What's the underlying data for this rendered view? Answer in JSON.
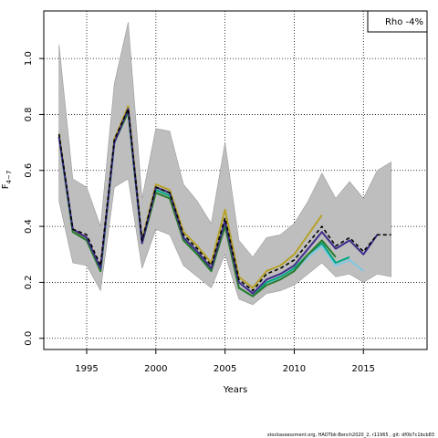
{
  "chart_data": {
    "type": "line",
    "title": "",
    "xlabel": "Years",
    "ylabel": "F",
    "ylabel_subscript": "4−7",
    "xlim": [
      1991.9,
      2019.6
    ],
    "ylim": [
      -0.04,
      1.17
    ],
    "x_ticks": [
      1995,
      2000,
      2005,
      2010,
      2015
    ],
    "x_tick_labels": [
      "1995",
      "2000",
      "2005",
      "2010",
      "2015"
    ],
    "y_ticks": [
      0.0,
      0.2,
      0.4,
      0.6,
      0.8,
      1.0
    ],
    "y_tick_labels": [
      "0.0",
      "0.2",
      "0.4",
      "0.6",
      "0.8",
      "1.0"
    ],
    "grid": true,
    "legend_placement": "top-right",
    "legend_text": "Rho -4%",
    "footer": "stockassessment.org, HADTbk-Bench2020_2, r11965 , git: df0b7c1bcb83",
    "band": {
      "color": "#bebebe",
      "x": [
        1993,
        1994,
        1995,
        1996,
        1997,
        1998,
        1999,
        2000,
        2001,
        2002,
        2003,
        2004,
        2005,
        2006,
        2007,
        2008,
        2009,
        2010,
        2011,
        2012,
        2013,
        2014,
        2015,
        2016,
        2017
      ],
      "upper": [
        1.05,
        0.57,
        0.54,
        0.4,
        0.91,
        1.13,
        0.5,
        0.75,
        0.74,
        0.55,
        0.49,
        0.41,
        0.7,
        0.35,
        0.29,
        0.36,
        0.37,
        0.41,
        0.49,
        0.59,
        0.5,
        0.56,
        0.5,
        0.6,
        0.63
      ],
      "lower": [
        0.49,
        0.27,
        0.26,
        0.17,
        0.54,
        0.57,
        0.25,
        0.39,
        0.37,
        0.26,
        0.22,
        0.18,
        0.3,
        0.14,
        0.12,
        0.16,
        0.17,
        0.19,
        0.23,
        0.27,
        0.22,
        0.23,
        0.2,
        0.23,
        0.22
      ]
    },
    "series": [
      {
        "color": "#b5a227",
        "dashed": false,
        "x": [
          1993,
          1994,
          1995,
          1996,
          1997,
          1998,
          1999,
          2000,
          2001,
          2002,
          2003,
          2004,
          2005,
          2006,
          2007,
          2008,
          2009,
          2010,
          2011,
          2012
        ],
        "values": [
          0.73,
          0.38,
          0.36,
          0.25,
          0.71,
          0.83,
          0.35,
          0.55,
          0.53,
          0.38,
          0.33,
          0.27,
          0.46,
          0.22,
          0.18,
          0.24,
          0.26,
          0.3,
          0.37,
          0.44
        ]
      },
      {
        "color": "#7ec8e3",
        "dashed": false,
        "x": [
          1993,
          1994,
          1995,
          1996,
          1997,
          1998,
          1999,
          2000,
          2001,
          2002,
          2003,
          2004,
          2005,
          2006,
          2007,
          2008,
          2009,
          2010,
          2011,
          2012,
          2013,
          2014,
          2015
        ],
        "values": [
          0.72,
          0.38,
          0.35,
          0.24,
          0.7,
          0.81,
          0.34,
          0.53,
          0.51,
          0.36,
          0.3,
          0.25,
          0.41,
          0.18,
          0.15,
          0.2,
          0.21,
          0.24,
          0.29,
          0.33,
          0.26,
          0.28,
          0.24
        ]
      },
      {
        "color": "#00a67e",
        "dashed": false,
        "x": [
          1993,
          1994,
          1995,
          1996,
          1997,
          1998,
          1999,
          2000,
          2001,
          2002,
          2003,
          2004,
          2005,
          2006,
          2007,
          2008,
          2009,
          2010,
          2011,
          2012,
          2013,
          2014
        ],
        "values": [
          0.72,
          0.38,
          0.35,
          0.24,
          0.7,
          0.81,
          0.34,
          0.53,
          0.51,
          0.35,
          0.3,
          0.24,
          0.41,
          0.18,
          0.15,
          0.2,
          0.22,
          0.25,
          0.3,
          0.34,
          0.27,
          0.29
        ]
      },
      {
        "color": "#2a7a2a",
        "dashed": false,
        "x": [
          1993,
          1994,
          1995,
          1996,
          1997,
          1998,
          1999,
          2000,
          2001,
          2002,
          2003,
          2004,
          2005,
          2006,
          2007,
          2008,
          2009,
          2010,
          2011,
          2012,
          2013
        ],
        "values": [
          0.72,
          0.38,
          0.35,
          0.24,
          0.7,
          0.81,
          0.34,
          0.52,
          0.5,
          0.35,
          0.3,
          0.24,
          0.4,
          0.18,
          0.15,
          0.19,
          0.21,
          0.24,
          0.3,
          0.35,
          0.29
        ]
      },
      {
        "color": "#3f2b8c",
        "dashed": false,
        "x": [
          1993,
          1994,
          1995,
          1996,
          1997,
          1998,
          1999,
          2000,
          2001,
          2002,
          2003,
          2004,
          2005,
          2006,
          2007,
          2008,
          2009,
          2010,
          2011,
          2012,
          2013,
          2014,
          2015,
          2016
        ],
        "values": [
          0.72,
          0.39,
          0.36,
          0.25,
          0.7,
          0.82,
          0.34,
          0.54,
          0.52,
          0.36,
          0.31,
          0.25,
          0.42,
          0.2,
          0.16,
          0.21,
          0.23,
          0.26,
          0.32,
          0.38,
          0.32,
          0.35,
          0.3,
          0.37
        ]
      },
      {
        "color": "#000000",
        "dashed": true,
        "x": [
          1993,
          1994,
          1995,
          1996,
          1997,
          1998,
          1999,
          2000,
          2001,
          2002,
          2003,
          2004,
          2005,
          2006,
          2007,
          2008,
          2009,
          2010,
          2011,
          2012,
          2013,
          2014,
          2015,
          2016,
          2017
        ],
        "values": [
          0.73,
          0.39,
          0.37,
          0.26,
          0.71,
          0.82,
          0.35,
          0.54,
          0.52,
          0.37,
          0.32,
          0.26,
          0.43,
          0.21,
          0.17,
          0.23,
          0.25,
          0.28,
          0.34,
          0.4,
          0.33,
          0.36,
          0.31,
          0.37,
          0.37
        ]
      }
    ]
  }
}
